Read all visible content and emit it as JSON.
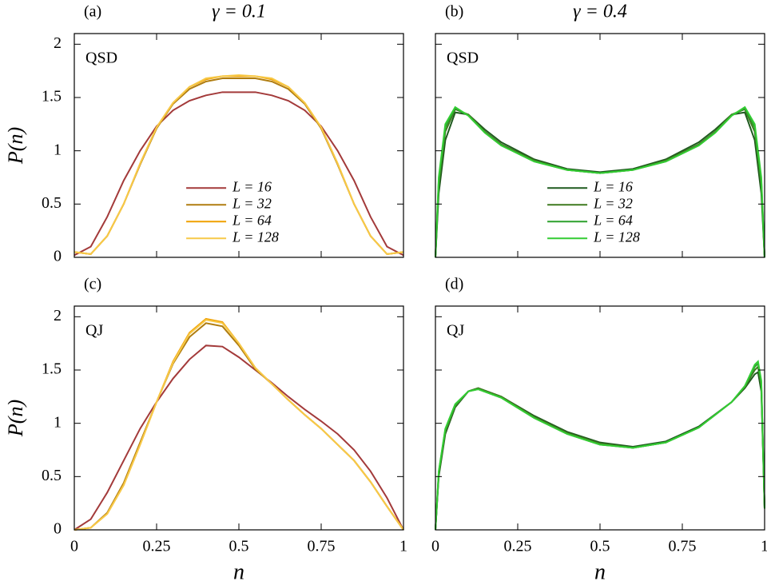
{
  "chart_data": [
    {
      "type": "line",
      "panel_label": "(a)",
      "title": "γ = 0.1",
      "annotation": "QSD",
      "ylabel": "P(n)",
      "x": [
        0,
        0.05,
        0.1,
        0.15,
        0.2,
        0.25,
        0.3,
        0.35,
        0.4,
        0.45,
        0.5,
        0.55,
        0.6,
        0.65,
        0.7,
        0.75,
        0.8,
        0.85,
        0.9,
        0.95,
        1
      ],
      "series": [
        {
          "name": "L = 16",
          "color": "#a33a3a",
          "values": [
            0.02,
            0.1,
            0.38,
            0.72,
            1.0,
            1.23,
            1.38,
            1.47,
            1.52,
            1.55,
            1.55,
            1.55,
            1.52,
            1.47,
            1.38,
            1.23,
            1.0,
            0.72,
            0.38,
            0.1,
            0.02
          ]
        },
        {
          "name": "L = 32",
          "color": "#b07d10",
          "values": [
            0.05,
            0.03,
            0.2,
            0.5,
            0.87,
            1.21,
            1.44,
            1.58,
            1.65,
            1.68,
            1.68,
            1.68,
            1.65,
            1.58,
            1.44,
            1.21,
            0.87,
            0.5,
            0.2,
            0.03,
            0.05
          ]
        },
        {
          "name": "L = 64",
          "color": "#f0a000",
          "values": [
            0.05,
            0.03,
            0.2,
            0.5,
            0.88,
            1.22,
            1.45,
            1.6,
            1.67,
            1.7,
            1.7,
            1.7,
            1.67,
            1.6,
            1.45,
            1.22,
            0.88,
            0.5,
            0.2,
            0.03,
            0.05
          ]
        },
        {
          "name": "L = 128",
          "color": "#f7c948",
          "values": [
            0.05,
            0.03,
            0.2,
            0.5,
            0.88,
            1.22,
            1.45,
            1.6,
            1.68,
            1.7,
            1.71,
            1.7,
            1.68,
            1.6,
            1.45,
            1.22,
            0.88,
            0.5,
            0.2,
            0.03,
            0.05
          ]
        }
      ],
      "legend": true,
      "xlim": [
        0,
        1
      ],
      "ylim": [
        0,
        2.1
      ],
      "xticks": [
        0,
        0.25,
        0.5,
        0.75,
        1
      ],
      "yticks": [
        0,
        0.5,
        1,
        1.5,
        2
      ],
      "xtick_labels": false,
      "ytick_labels": true
    },
    {
      "type": "line",
      "panel_label": "(b)",
      "title": "γ = 0.4",
      "annotation": "QSD",
      "x": [
        0,
        0.01,
        0.03,
        0.06,
        0.1,
        0.15,
        0.2,
        0.3,
        0.4,
        0.5,
        0.6,
        0.7,
        0.8,
        0.85,
        0.9,
        0.94,
        0.97,
        0.99,
        1
      ],
      "series": [
        {
          "name": "L = 16",
          "color": "#1f5a1f",
          "values": [
            0,
            0.6,
            1.1,
            1.36,
            1.34,
            1.2,
            1.08,
            0.92,
            0.83,
            0.8,
            0.83,
            0.92,
            1.08,
            1.2,
            1.34,
            1.36,
            1.1,
            0.6,
            0
          ]
        },
        {
          "name": "L = 32",
          "color": "#3e7a1e",
          "values": [
            0,
            0.68,
            1.18,
            1.39,
            1.34,
            1.18,
            1.06,
            0.91,
            0.82,
            0.79,
            0.82,
            0.91,
            1.06,
            1.18,
            1.34,
            1.39,
            1.18,
            0.68,
            0
          ]
        },
        {
          "name": "L = 64",
          "color": "#2ca02c",
          "values": [
            0,
            0.72,
            1.22,
            1.4,
            1.33,
            1.17,
            1.05,
            0.9,
            0.82,
            0.79,
            0.82,
            0.9,
            1.05,
            1.17,
            1.33,
            1.4,
            1.22,
            0.72,
            0
          ]
        },
        {
          "name": "L = 128",
          "color": "#33cc33",
          "values": [
            0,
            0.75,
            1.25,
            1.41,
            1.33,
            1.17,
            1.05,
            0.9,
            0.82,
            0.79,
            0.82,
            0.9,
            1.05,
            1.17,
            1.33,
            1.41,
            1.25,
            0.75,
            0
          ]
        }
      ],
      "legend": true,
      "xlim": [
        0,
        1
      ],
      "ylim": [
        0,
        2.1
      ],
      "xticks": [
        0,
        0.25,
        0.5,
        0.75,
        1
      ],
      "yticks": [
        0,
        0.5,
        1,
        1.5,
        2
      ],
      "xtick_labels": false,
      "ytick_labels": false
    },
    {
      "type": "line",
      "panel_label": "(c)",
      "annotation": "QJ",
      "ylabel": "P(n)",
      "xlabel": "n",
      "x": [
        0,
        0.05,
        0.1,
        0.15,
        0.2,
        0.25,
        0.3,
        0.35,
        0.4,
        0.45,
        0.5,
        0.55,
        0.6,
        0.65,
        0.7,
        0.75,
        0.8,
        0.85,
        0.9,
        0.95,
        1
      ],
      "series": [
        {
          "color": "#a33a3a",
          "values": [
            0,
            0.1,
            0.35,
            0.65,
            0.95,
            1.2,
            1.42,
            1.6,
            1.73,
            1.72,
            1.62,
            1.5,
            1.38,
            1.25,
            1.13,
            1.02,
            0.9,
            0.75,
            0.55,
            0.3,
            0
          ]
        },
        {
          "color": "#b07d10",
          "values": [
            0,
            0.02,
            0.16,
            0.44,
            0.82,
            1.2,
            1.56,
            1.81,
            1.94,
            1.91,
            1.73,
            1.51,
            1.37,
            1.22,
            1.08,
            0.95,
            0.8,
            0.65,
            0.45,
            0.22,
            0
          ]
        },
        {
          "color": "#f0a000",
          "values": [
            0,
            0.02,
            0.15,
            0.42,
            0.8,
            1.2,
            1.58,
            1.85,
            1.98,
            1.95,
            1.75,
            1.52,
            1.37,
            1.22,
            1.08,
            0.95,
            0.8,
            0.65,
            0.45,
            0.22,
            0
          ]
        },
        {
          "color": "#f7c948",
          "values": [
            0,
            0.02,
            0.15,
            0.42,
            0.8,
            1.2,
            1.57,
            1.84,
            1.97,
            1.94,
            1.75,
            1.52,
            1.37,
            1.22,
            1.08,
            0.95,
            0.8,
            0.65,
            0.45,
            0.22,
            0
          ]
        }
      ],
      "legend": false,
      "xlim": [
        0,
        1
      ],
      "ylim": [
        0,
        2.1
      ],
      "xticks": [
        0,
        0.25,
        0.5,
        0.75,
        1
      ],
      "yticks": [
        0,
        0.5,
        1,
        1.5,
        2
      ],
      "xtick_labels": true,
      "ytick_labels": true
    },
    {
      "type": "line",
      "panel_label": "(d)",
      "annotation": "QJ",
      "xlabel": "n",
      "x": [
        0,
        0.01,
        0.03,
        0.06,
        0.1,
        0.13,
        0.2,
        0.3,
        0.4,
        0.5,
        0.6,
        0.7,
        0.8,
        0.9,
        0.94,
        0.97,
        0.98,
        0.99,
        1
      ],
      "series": [
        {
          "color": "#1f5a1f",
          "values": [
            0,
            0.5,
            0.9,
            1.15,
            1.3,
            1.33,
            1.25,
            1.07,
            0.92,
            0.82,
            0.78,
            0.83,
            0.97,
            1.2,
            1.33,
            1.46,
            1.48,
            1.3,
            0.2
          ]
        },
        {
          "color": "#3e7a1e",
          "values": [
            0,
            0.52,
            0.92,
            1.16,
            1.3,
            1.33,
            1.25,
            1.06,
            0.91,
            0.81,
            0.77,
            0.82,
            0.96,
            1.2,
            1.34,
            1.5,
            1.53,
            1.35,
            0.2
          ]
        },
        {
          "color": "#2ca02c",
          "values": [
            0,
            0.54,
            0.94,
            1.17,
            1.3,
            1.32,
            1.24,
            1.05,
            0.9,
            0.8,
            0.77,
            0.82,
            0.96,
            1.2,
            1.35,
            1.53,
            1.56,
            1.38,
            0.2
          ]
        },
        {
          "color": "#33cc33",
          "values": [
            0,
            0.55,
            0.95,
            1.18,
            1.3,
            1.32,
            1.24,
            1.05,
            0.9,
            0.8,
            0.77,
            0.82,
            0.96,
            1.2,
            1.35,
            1.55,
            1.58,
            1.4,
            0.2
          ]
        }
      ],
      "legend": false,
      "xlim": [
        0,
        1
      ],
      "ylim": [
        0,
        2.1
      ],
      "xticks": [
        0,
        0.25,
        0.5,
        0.75,
        1
      ],
      "yticks": [
        0,
        0.5,
        1,
        1.5,
        2
      ],
      "xtick_labels": true,
      "ytick_labels": false
    }
  ]
}
